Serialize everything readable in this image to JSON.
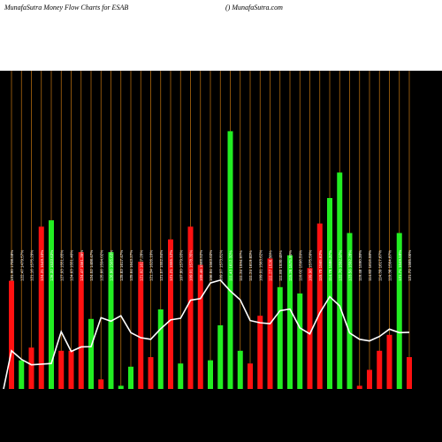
{
  "header": {
    "title": "MunafaSutra  Money Flow  Charts for ESAB",
    "site": "() MunafaSutra.com"
  },
  "colors": {
    "background": "#000000",
    "header_background": "#ffffff",
    "grid": "#b06a10",
    "line": "#ffffff",
    "up": "#22ee22",
    "down": "#ff1111",
    "label": "#ffffff"
  },
  "chart_data": {
    "type": "bar",
    "title": "MunafaSutra  Money Flow  Charts for ESAB",
    "grid": "vertical",
    "categories": [
      "131.90 1708.58%",
      "122.47 1479.57%",
      "121.16 1575.29%",
      "124.31 1549.10%",
      "126.32 1533.63%",
      "127.93 1551.65%",
      "124.63 1551.40%",
      "124.47 1561.36%",
      "124.52 1408.47%",
      "125.66 1594.02%",
      "126.86 1565.63%",
      "125.83 1617.47%",
      "125.64 1643.27%",
      "121.02 1617.28%",
      "121.34 1626.10%",
      "121.57 1552.84%",
      "121.21 1555.12%",
      "107.80 1579.93%",
      "109.01 1578.35%",
      "109.46 1568.52%",
      "106.84 1563.03%",
      "109.97 1573.81%",
      "111.43 1612.32%",
      "111.34 1594.97%",
      "111.24 1619.83%",
      "109.91 1563.62%",
      "111.27 1526.50%",
      "111.85 1530.45%",
      "115.26 1575.95%",
      "116.02 1598.59%",
      "109.96 1575.59%",
      "110.70 1565.63%",
      "114.76 1586.37%",
      "122.78 1592.97%",
      "123.56 1592.28%",
      "119.46 1590.38%",
      "114.82 1616.58%",
      "114.39 1617.67%",
      "119.36 1564.87%",
      "121.71 1549.59%",
      "121.72 1585.05%"
    ],
    "series": [
      {
        "values": [
          34,
          9,
          13,
          51,
          53,
          12,
          12,
          43,
          22,
          3,
          43,
          1,
          7,
          40,
          10,
          25,
          47,
          8,
          51,
          39,
          9,
          20,
          81,
          12,
          8,
          23,
          41,
          32,
          42,
          30,
          38,
          52,
          60,
          68,
          49,
          1,
          6,
          12,
          17,
          49,
          10
        ],
        "colors": [
          "red",
          "green",
          "red",
          "red",
          "green",
          "red",
          "red",
          "red",
          "green",
          "red",
          "green",
          "green",
          "green",
          "red",
          "red",
          "green",
          "red",
          "green",
          "red",
          "red",
          "green",
          "green",
          "green",
          "green",
          "red",
          "red",
          "red",
          "green",
          "green",
          "green",
          "red",
          "red",
          "green",
          "green",
          "green",
          "red",
          "red",
          "red",
          "red",
          "green",
          "red"
        ]
      }
    ],
    "line_values": [
      12.0,
      9.3,
      7.6,
      7.8,
      8.0,
      18.0,
      11.8,
      13.2,
      13.3,
      22.4,
      21.3,
      23.0,
      17.7,
      16.1,
      15.6,
      18.9,
      21.7,
      22.2,
      27.9,
      28.4,
      33.3,
      34.2,
      30.8,
      28.0,
      21.5,
      20.8,
      20.5,
      24.6,
      25.1,
      19.2,
      17.3,
      23.9,
      29.0,
      26.1,
      17.6,
      15.6,
      15.1,
      16.5,
      18.8,
      17.7,
      17.8
    ],
    "ylim": [
      0,
      100
    ],
    "line_ylim": [
      0,
      100
    ]
  }
}
